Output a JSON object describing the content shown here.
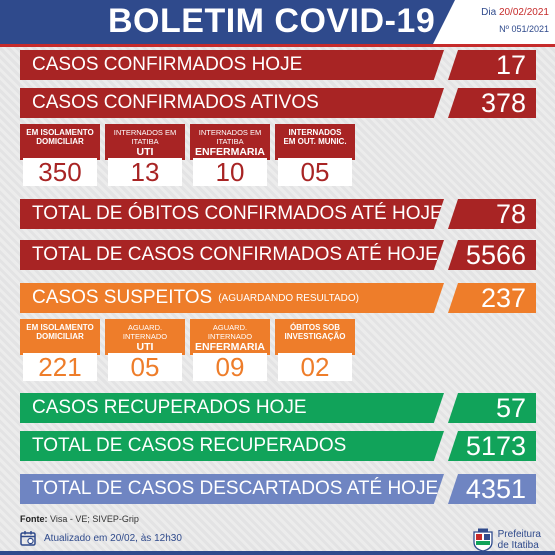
{
  "header": {
    "title": "BOLETIM COVID-19",
    "date_prefix": "Dia ",
    "date": "20/02/2021",
    "bulletin": "Nº 051/2021"
  },
  "rows": {
    "confirmed_today": {
      "label": "CASOS CONFIRMADOS HOJE",
      "value": "17"
    },
    "confirmed_active": {
      "label": "CASOS CONFIRMADOS ATIVOS",
      "value": "378"
    },
    "deaths_total": {
      "label": "TOTAL DE ÓBITOS CONFIRMADOS ATÉ HOJE",
      "value": "78"
    },
    "cases_total": {
      "label": "TOTAL DE CASOS CONFIRMADOS ATÉ HOJE",
      "value": "5566"
    },
    "suspected": {
      "label": "CASOS SUSPEITOS",
      "note": "(AGUARDANDO RESULTADO)",
      "value": "237"
    },
    "recovered_today": {
      "label": "CASOS RECUPERADOS HOJE",
      "value": "57"
    },
    "recovered_total": {
      "label": "TOTAL DE CASOS RECUPERADOS",
      "value": "5173"
    },
    "discarded_total": {
      "label": "TOTAL DE CASOS DESCARTADOS ATÉ HOJE",
      "value": "4351"
    }
  },
  "active_breakdown": [
    {
      "line1": "EM ISOLAMENTO",
      "line2": "DOMICILIAR",
      "line3": "",
      "value": "350"
    },
    {
      "line1": "INTERNADOS EM ITATIBA",
      "line2": "UTI",
      "line3": "",
      "value": "13"
    },
    {
      "line1": "INTERNADOS EM ITATIBA",
      "line2": "ENFERMARIA",
      "line3": "",
      "value": "10"
    },
    {
      "line1": "INTERNADOS",
      "line2": "EM OUT. MUNIC.",
      "line3": "",
      "value": "05"
    }
  ],
  "suspected_breakdown": [
    {
      "line1": "EM ISOLAMENTO",
      "line2": "DOMICILIAR",
      "line3": "",
      "value": "221"
    },
    {
      "line1": "AGUARD. INTERNADO",
      "line2": "UTI",
      "line3": "",
      "value": "05"
    },
    {
      "line1": "AGUARD. INTERNADO",
      "line2": "ENFERMARIA",
      "line3": "",
      "value": "09"
    },
    {
      "line1": "ÓBITOS SOB",
      "line2": "INVESTIGAÇÃO",
      "line3": "",
      "value": "02"
    }
  ],
  "footer": {
    "source_label": "Fonte:",
    "source": " Visa - VE; SIVEP-Grip",
    "updated": "Atualizado em  20/02, às 12h30",
    "logo_line1": "Prefeitura",
    "logo_line2": "de Itatiba",
    "calendar_icon": "calendar-icon",
    "logo_icon": "city-crest-icon"
  },
  "colors": {
    "red": "#a82424",
    "orange": "#ee7d2a",
    "green": "#11a35a",
    "blue": "#6f85c2",
    "navy": "#2f4a8c"
  }
}
